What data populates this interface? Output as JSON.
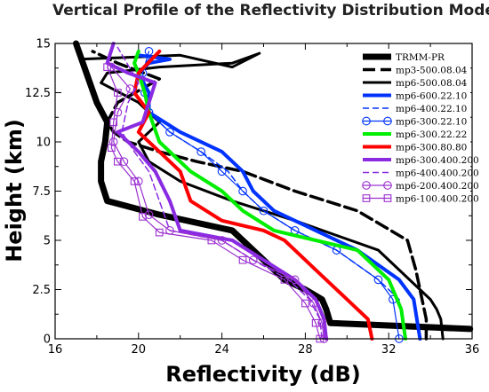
{
  "chart_data": {
    "type": "line",
    "title": "Vertical Profile of the Reflectivity Distribution Mode",
    "xlabel": "Reflectivity (dB)",
    "ylabel": "Height (km)",
    "xlim": [
      16,
      36
    ],
    "ylim": [
      0,
      15
    ],
    "xticks": [
      16,
      20,
      24,
      28,
      32,
      36
    ],
    "yticks": [
      0,
      2.5,
      5,
      7.5,
      10,
      12.5,
      15
    ],
    "xtick_labels": [
      "16",
      "20",
      "24",
      "28",
      "32",
      "36"
    ],
    "ytick_labels": [
      "0",
      "2.5",
      "5",
      "7.5",
      "10",
      "12.5",
      "15"
    ],
    "legend_position": "top-right",
    "series": [
      {
        "name": "TRMM-PR",
        "color": "#000000",
        "width": 7,
        "dash": "",
        "marker": "none",
        "x": [
          35.9,
          29.2,
          29.0,
          28.8,
          28.0,
          27.0,
          26.0,
          24.5,
          21.0,
          18.5,
          18.2,
          18.2,
          18.4,
          18.5,
          18.0,
          17.5,
          17.0
        ],
        "y": [
          0.5,
          0.8,
          1.5,
          2.0,
          2.5,
          3.0,
          4.0,
          5.5,
          6.3,
          7.0,
          8.0,
          9.0,
          10.0,
          11.0,
          12.0,
          13.5,
          15.0
        ]
      },
      {
        "name": "mp3-500.08.04",
        "color": "#000000",
        "width": 3.5,
        "dash": "14,6",
        "marker": "none",
        "x": [
          33.8,
          33.8,
          33.6,
          33.3,
          32.9,
          30.5,
          27.5,
          25.0,
          22.8,
          21.0,
          19.5,
          18.8,
          18.5,
          19.0,
          21.0,
          19.0,
          17.8
        ],
        "y": [
          0.0,
          1.0,
          2.0,
          3.5,
          5.0,
          6.5,
          7.5,
          8.5,
          9.0,
          9.5,
          10.0,
          10.5,
          11.0,
          12.0,
          13.2,
          14.0,
          14.6
        ]
      },
      {
        "name": "mp6-500.08.04",
        "color": "#000000",
        "width": 3,
        "dash": "",
        "marker": "none",
        "x": [
          34.6,
          34.5,
          34.3,
          34.0,
          31.5,
          27.5,
          24.5,
          22.0,
          20.5,
          20.0,
          21.0,
          20.0,
          18.2,
          18.5,
          21.0,
          24.5,
          25.8,
          24.5,
          22.0,
          17.2
        ],
        "y": [
          0.0,
          1.0,
          1.5,
          2.0,
          4.5,
          6.0,
          7.0,
          8.0,
          9.0,
          10.0,
          11.0,
          12.0,
          13.0,
          13.5,
          13.8,
          14.0,
          14.5,
          13.8,
          14.4,
          14.2
        ]
      },
      {
        "name": "mp6-600.22.10",
        "color": "#0033ff",
        "width": 4,
        "dash": "",
        "marker": "none",
        "x": [
          33.5,
          33.2,
          32.5,
          30.5,
          28.5,
          26.5,
          25.5,
          25.0,
          24.0,
          22.0,
          20.5,
          20.5,
          20.0,
          20.5,
          21.5,
          20.0
        ],
        "y": [
          0.0,
          2.0,
          3.0,
          4.5,
          5.5,
          6.5,
          7.5,
          8.5,
          9.5,
          10.5,
          11.5,
          12.5,
          13.5,
          14.0,
          14.2,
          14.4
        ]
      },
      {
        "name": "mp6-400.22.10",
        "color": "#0033ff",
        "width": 1.5,
        "dash": "7,4",
        "marker": "none",
        "x": [
          32.8,
          32.5,
          31.5,
          29.5,
          27.5,
          26.0,
          25.0,
          24.3,
          23.0,
          21.5,
          20.5,
          20.5,
          20.0,
          20.5
        ],
        "y": [
          0.0,
          2.0,
          3.0,
          4.5,
          5.5,
          6.5,
          7.5,
          8.5,
          9.5,
          10.5,
          11.5,
          12.5,
          13.5,
          14.2
        ]
      },
      {
        "name": "mp6-300.22.10",
        "color": "#0033ff",
        "width": 1.2,
        "dash": "",
        "marker": "circle",
        "x": [
          32.5,
          32.2,
          31.5,
          29.5,
          27.5,
          26.0,
          25.0,
          24.0,
          23.0,
          21.5,
          20.5,
          20.3,
          20.2,
          20.5
        ],
        "y": [
          0.0,
          2.0,
          3.0,
          4.5,
          5.5,
          6.5,
          7.5,
          8.5,
          9.5,
          10.5,
          11.5,
          12.5,
          13.5,
          14.6
        ]
      },
      {
        "name": "mp6-300.22.22",
        "color": "#00ee00",
        "width": 4,
        "dash": "",
        "marker": "none",
        "x": [
          32.8,
          32.6,
          32.0,
          30.5,
          28.5,
          26.5,
          25.0,
          24.0,
          22.5,
          21.0,
          20.5,
          20.3,
          20.0,
          19.8,
          20.0
        ],
        "y": [
          0.0,
          1.5,
          3.0,
          4.5,
          5.0,
          5.5,
          6.5,
          7.5,
          8.5,
          10.0,
          11.5,
          12.5,
          13.5,
          14.0,
          14.6
        ]
      },
      {
        "name": "mp6-300.80.80",
        "color": "#ff0000",
        "width": 4,
        "dash": "",
        "marker": "none",
        "x": [
          31.2,
          31.0,
          30.0,
          28.5,
          27.5,
          27.0,
          26.0,
          24.0,
          22.5,
          22.0,
          21.0,
          20.0,
          20.5,
          19.8,
          20.0,
          21.0
        ],
        "y": [
          0.0,
          1.0,
          2.0,
          3.5,
          4.5,
          5.0,
          5.5,
          6.0,
          7.0,
          8.5,
          9.5,
          10.5,
          11.5,
          12.5,
          13.5,
          14.6
        ]
      },
      {
        "name": "mp6-300.400.200",
        "color": "#8a2be2",
        "width": 4,
        "dash": "",
        "marker": "none",
        "x": [
          29.0,
          28.9,
          28.5,
          27.5,
          26.0,
          24.5,
          22.0,
          21.5,
          20.8,
          20.0,
          19.5,
          19.0,
          20.2,
          20.5,
          20.8,
          19.5,
          18.5,
          18.8
        ],
        "y": [
          0.0,
          1.0,
          2.0,
          3.0,
          4.0,
          5.0,
          5.5,
          7.0,
          8.5,
          9.5,
          10.0,
          10.5,
          11.0,
          12.0,
          13.0,
          13.5,
          14.0,
          15.0
        ]
      },
      {
        "name": "mp6-400.400.200",
        "color": "#8a2be2",
        "width": 1.5,
        "dash": "7,4",
        "marker": "none",
        "x": [
          28.8,
          28.7,
          28.2,
          27.2,
          25.5,
          24.0,
          21.5,
          21.0,
          20.5,
          19.8,
          19.2,
          19.5,
          20.0,
          19.0
        ],
        "y": [
          0.0,
          1.0,
          2.0,
          3.0,
          4.0,
          5.0,
          5.5,
          7.0,
          8.5,
          9.5,
          10.5,
          12.0,
          13.0,
          14.8
        ]
      },
      {
        "name": "mp6-200.400.200",
        "color": "#9b30d0",
        "width": 1.2,
        "dash": "",
        "marker": "circle",
        "x": [
          28.9,
          28.8,
          28.4,
          27.5,
          25.5,
          24.0,
          21.5,
          20.5,
          20.0,
          19.3,
          18.8,
          19.0,
          19.6,
          18.7
        ],
        "y": [
          0.0,
          0.8,
          1.8,
          3.0,
          4.0,
          5.0,
          5.5,
          6.3,
          8.0,
          9.0,
          10.0,
          11.5,
          12.7,
          13.8
        ]
      },
      {
        "name": "mp6-100.400.200",
        "color": "#9b30d0",
        "width": 1.2,
        "dash": "",
        "marker": "square",
        "x": [
          28.7,
          28.5,
          28.0,
          27.0,
          25.0,
          23.5,
          21.0,
          20.2,
          19.8,
          19.0,
          18.7,
          18.8,
          19.0,
          18.5
        ],
        "y": [
          0.0,
          0.8,
          1.8,
          3.0,
          4.0,
          5.0,
          5.4,
          6.2,
          8.0,
          9.0,
          9.7,
          11.0,
          12.5,
          13.8
        ]
      }
    ]
  }
}
